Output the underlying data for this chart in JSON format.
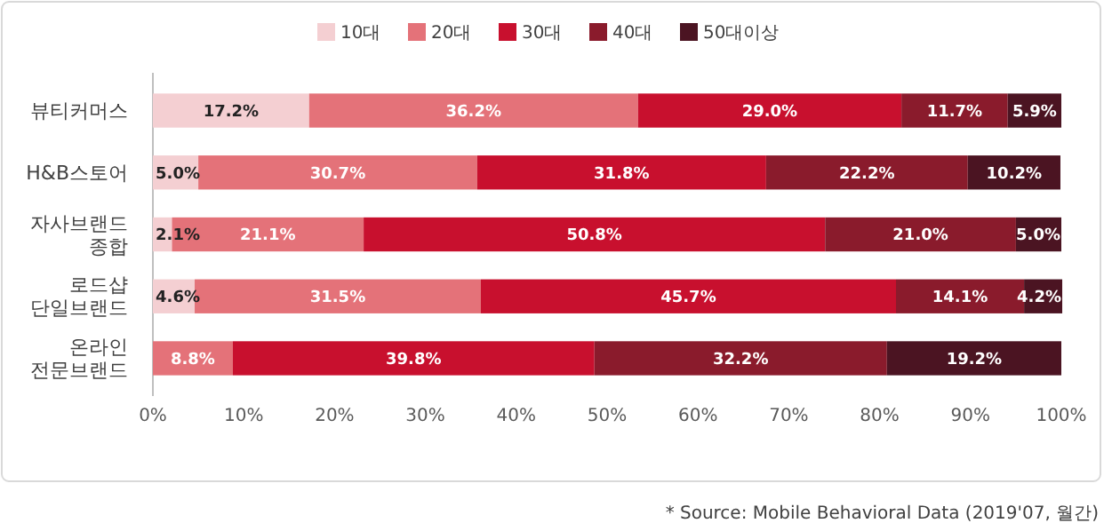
{
  "chart_data": {
    "type": "bar",
    "orientation": "horizontal",
    "stacked": true,
    "legend": "top",
    "categories": [
      "뷰티커머스",
      "H&B스토어",
      "자사브랜드 종합",
      "로드샵 단일브랜드",
      "온라인 전문브랜드"
    ],
    "series": [
      {
        "name": "10대",
        "color": "#f4cfd2",
        "values": [
          17.2,
          5.0,
          2.1,
          4.6,
          null
        ],
        "value_labels": [
          "17.2%",
          "5.0%",
          "2.1%",
          "4.6%",
          null
        ]
      },
      {
        "name": "20대",
        "color": "#e47279",
        "values": [
          36.2,
          30.7,
          21.1,
          31.5,
          8.8
        ],
        "value_labels": [
          "36.2%",
          "30.7%",
          "21.1%",
          "31.5%",
          "8.8%"
        ]
      },
      {
        "name": "30대",
        "color": "#c8102e",
        "values": [
          29.0,
          31.8,
          50.8,
          45.7,
          39.8
        ],
        "value_labels": [
          "29.0%",
          "31.8%",
          "50.8%",
          "45.7%",
          "39.8%"
        ]
      },
      {
        "name": "40대",
        "color": "#8a1b2c",
        "values": [
          11.7,
          22.2,
          21.0,
          14.1,
          32.2
        ],
        "value_labels": [
          "11.7%",
          "22.2%",
          "21.0%",
          "14.1%",
          "32.2%"
        ]
      },
      {
        "name": "50대이상",
        "color": "#4b1422",
        "values": [
          5.9,
          10.2,
          5.0,
          4.2,
          19.2
        ],
        "value_labels": [
          "5.9%",
          "10.2%",
          "5.0%",
          "4.2%",
          "19.2%"
        ]
      }
    ],
    "xlim": [
      0,
      100
    ],
    "xticks": [
      {
        "value": 0,
        "label": "0%"
      },
      {
        "value": 10,
        "label": "10%"
      },
      {
        "value": 20,
        "label": "20%"
      },
      {
        "value": 30,
        "label": "30%"
      },
      {
        "value": 40,
        "label": "40%"
      },
      {
        "value": 50,
        "label": "50%"
      },
      {
        "value": 60,
        "label": "60%"
      },
      {
        "value": 70,
        "label": "70%"
      },
      {
        "value": 80,
        "label": "80%"
      },
      {
        "value": 90,
        "label": "90%"
      },
      {
        "value": 100,
        "label": "100%"
      }
    ],
    "annotations": [
      "* Source: Mobile Behavioral Data (2019'07, 월간)"
    ]
  }
}
